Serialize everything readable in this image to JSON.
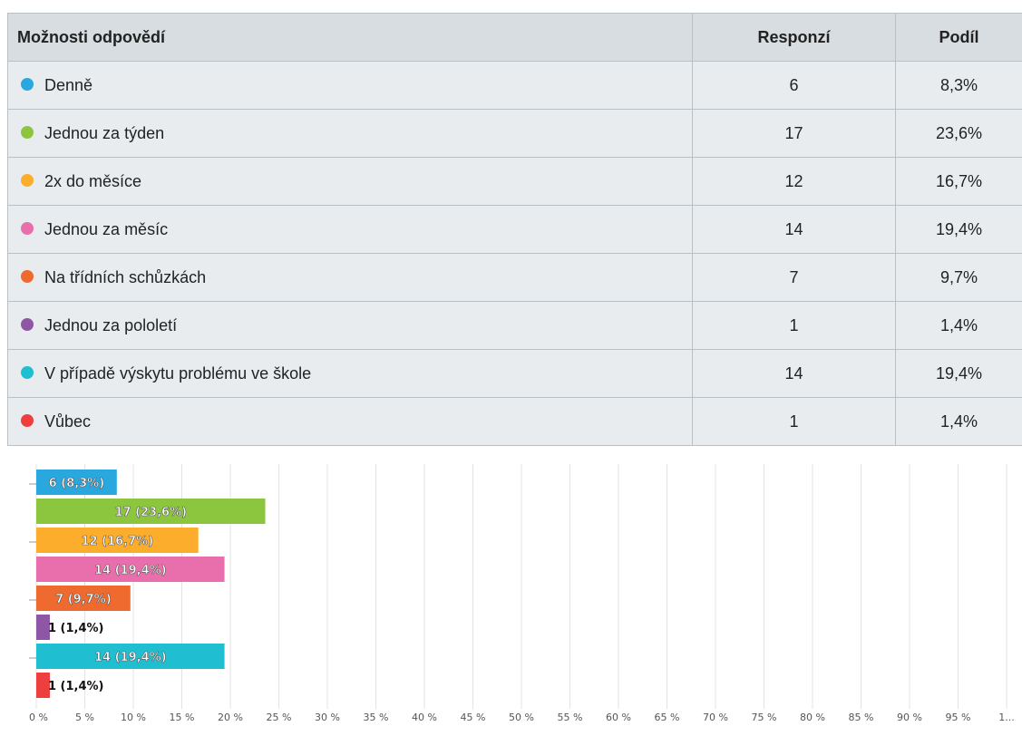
{
  "table": {
    "headers": [
      "Možnosti odpovědí",
      "Responzí",
      "Podíl"
    ],
    "rows": [
      {
        "label": "Denně",
        "count": "6",
        "share": "8,3%",
        "color": "#29a8e0"
      },
      {
        "label": "Jednou za týden",
        "count": "17",
        "share": "23,6%",
        "color": "#8cc63f"
      },
      {
        "label": "2x do měsíce",
        "count": "12",
        "share": "16,7%",
        "color": "#fbad2b"
      },
      {
        "label": "Jednou za měsíc",
        "count": "14",
        "share": "19,4%",
        "color": "#e86fab"
      },
      {
        "label": "Na třídních schůzkách",
        "count": "7",
        "share": "9,7%",
        "color": "#ee6a2e"
      },
      {
        "label": "Jednou za pololetí",
        "count": "1",
        "share": "1,4%",
        "color": "#8e57a5"
      },
      {
        "label": "V případě výskytu problému ve škole",
        "count": "14",
        "share": "19,4%",
        "color": "#1fbfd1"
      },
      {
        "label": "Vůbec",
        "count": "1",
        "share": "1,4%",
        "color": "#ee3e3e"
      }
    ]
  },
  "chart_data": {
    "type": "bar",
    "orientation": "horizontal",
    "categories": [
      "Denně",
      "Jednou za týden",
      "2x do měsíce",
      "Jednou za měsíc",
      "Na třídních schůzkách",
      "Jednou za pololetí",
      "V případě výskytu problému ve škole",
      "Vůbec"
    ],
    "values": [
      8.3,
      23.6,
      16.7,
      19.4,
      9.7,
      1.4,
      19.4,
      1.4
    ],
    "bar_labels": [
      "6 (8,3%)",
      "17 (23,6%)",
      "12 (16,7%)",
      "14 (19,4%)",
      "7 (9,7%)",
      "1 (1,4%)",
      "14 (19,4%)",
      "1 (1,4%)"
    ],
    "colors": [
      "#29a8e0",
      "#8cc63f",
      "#fbad2b",
      "#e86fab",
      "#ee6a2e",
      "#8e57a5",
      "#1fbfd1",
      "#ee3e3e"
    ],
    "x_ticks": [
      "0 %",
      "5 %",
      "10 %",
      "15 %",
      "20 %",
      "25 %",
      "30 %",
      "35 %",
      "40 %",
      "45 %",
      "50 %",
      "55 %",
      "60 %",
      "65 %",
      "70 %",
      "75 %",
      "80 %",
      "85 %",
      "90 %",
      "95 %",
      "1..."
    ],
    "xlim": [
      0,
      100
    ],
    "grid": true,
    "title": "",
    "xlabel": "",
    "ylabel": ""
  }
}
